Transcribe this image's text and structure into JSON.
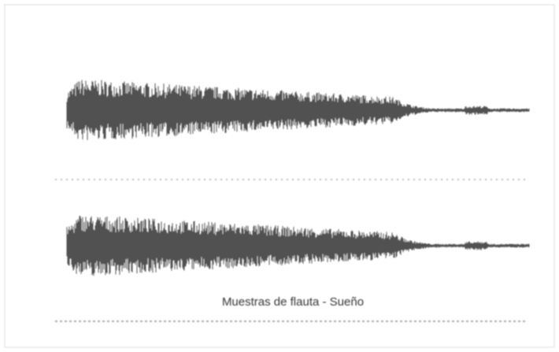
{
  "caption": "Muestras de flauta - Sueño"
}
